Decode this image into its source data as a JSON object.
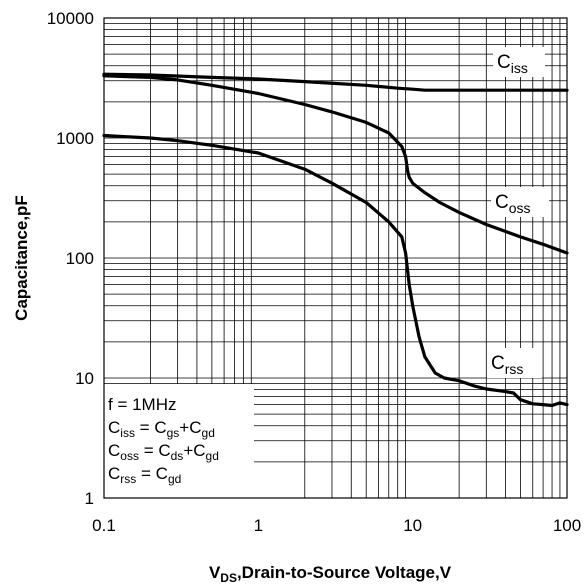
{
  "chart_data": {
    "type": "line",
    "xlabel": {
      "main": "V",
      "sub": "DS",
      "rest": ",Drain-to-Source Voltage,V"
    },
    "ylabel": "Capacitance,pF",
    "xscale": "log",
    "yscale": "log",
    "xlim": [
      0.1,
      100
    ],
    "ylim": [
      1,
      10000
    ],
    "xticks": [
      "0.1",
      "1",
      "10",
      "100"
    ],
    "yticks": [
      "1",
      "10",
      "100",
      "1000",
      "10000"
    ],
    "grid": true,
    "series": [
      {
        "name": "Ciss",
        "label_main": "C",
        "label_sub": "iss",
        "x": [
          0.1,
          0.2,
          0.5,
          1,
          2,
          5,
          8,
          10,
          12,
          20,
          50,
          100
        ],
        "y": [
          3400,
          3350,
          3200,
          3100,
          2950,
          2750,
          2600,
          2550,
          2500,
          2500,
          2500,
          2500
        ]
      },
      {
        "name": "Coss",
        "label_main": "C",
        "label_sub": "oss",
        "x": [
          0.1,
          0.2,
          0.3,
          0.5,
          1,
          2,
          3,
          5,
          7,
          8.5,
          9,
          9.3,
          9.5,
          10,
          12,
          15,
          20,
          30,
          50,
          70,
          100
        ],
        "y": [
          3300,
          3200,
          3050,
          2750,
          2350,
          1900,
          1650,
          1350,
          1100,
          850,
          700,
          520,
          470,
          420,
          350,
          290,
          240,
          190,
          150,
          130,
          110
        ]
      },
      {
        "name": "Crss",
        "label_main": "C",
        "label_sub": "rss",
        "x": [
          0.1,
          0.2,
          0.3,
          0.5,
          1,
          2,
          3,
          5,
          7,
          8.5,
          9,
          9.5,
          10,
          11,
          12,
          14,
          16,
          20,
          25,
          30,
          40,
          45,
          50,
          60,
          70,
          80,
          90,
          100
        ],
        "y": [
          1050,
          1000,
          950,
          870,
          750,
          550,
          420,
          290,
          200,
          150,
          110,
          60,
          40,
          22,
          15,
          11,
          10,
          9.5,
          8.6,
          8.1,
          7.7,
          7.5,
          6.6,
          6.1,
          6.0,
          5.9,
          6.2,
          6.0
        ]
      }
    ],
    "annotations": [
      {
        "text": "f = 1MHz"
      },
      {
        "parts": [
          [
            "C",
            ""
          ],
          [
            "iss",
            "sub"
          ],
          [
            " = C",
            ""
          ],
          [
            "gs",
            "sub"
          ],
          [
            "+C",
            ""
          ],
          [
            "gd",
            "sub"
          ]
        ]
      },
      {
        "parts": [
          [
            "C",
            ""
          ],
          [
            "oss",
            "sub"
          ],
          [
            " = C",
            ""
          ],
          [
            "ds",
            "sub"
          ],
          [
            "+C",
            ""
          ],
          [
            "gd",
            "sub"
          ]
        ]
      },
      {
        "parts": [
          [
            "C",
            ""
          ],
          [
            "rss",
            "sub"
          ],
          [
            " = C",
            ""
          ],
          [
            "gd",
            "sub"
          ]
        ]
      }
    ],
    "line_color": "#000000"
  }
}
